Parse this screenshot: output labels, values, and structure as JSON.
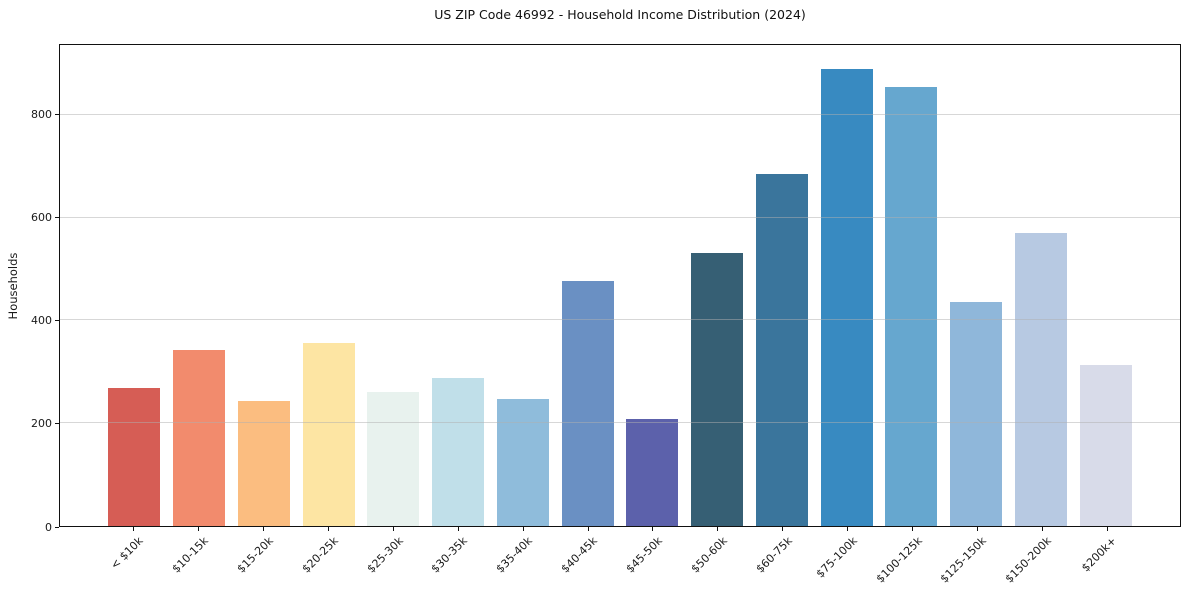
{
  "chart_data": {
    "type": "bar",
    "title": "US ZIP Code 46992 - Household Income Distribution (2024)",
    "xlabel": "",
    "ylabel": "Households",
    "categories": [
      "< $10k",
      "$10-15k",
      "$15-20k",
      "$20-25k",
      "$25-30k",
      "$30-35k",
      "$35-40k",
      "$40-45k",
      "$45-50k",
      "$50-60k",
      "$60-75k",
      "$75-100k",
      "$100-125k",
      "$125-150k",
      "$150-200k",
      "$200k+"
    ],
    "values": [
      268,
      342,
      243,
      356,
      261,
      289,
      248,
      476,
      209,
      532,
      685,
      889,
      855,
      435,
      571,
      313
    ],
    "bar_colors": [
      "#d65d55",
      "#f28b6d",
      "#fbbd80",
      "#fde5a3",
      "#e8f2ee",
      "#c0dfe9",
      "#8fbcdb",
      "#6a90c3",
      "#5c61ab",
      "#365f74",
      "#3a759c",
      "#388ac1",
      "#66a7cf",
      "#8fb7da",
      "#b7c9e2",
      "#d8dbe9"
    ],
    "yticks": [
      0,
      200,
      400,
      600,
      800
    ],
    "ylim": [
      0,
      936
    ],
    "grid": "horizontal gridlines at y ticks, light gray, drawn over bars",
    "legend": "none",
    "background_color": "#ffffff",
    "spine_color": "#111111",
    "xtick_label_rotation_deg": 45
  }
}
